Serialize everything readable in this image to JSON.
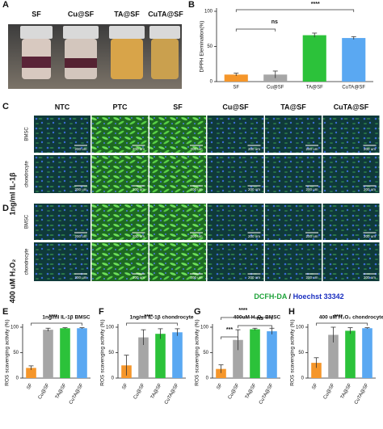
{
  "panel_labels": [
    "A",
    "B",
    "C",
    "D",
    "E",
    "F",
    "G",
    "H"
  ],
  "photo": {
    "labels": [
      "SF",
      "Cu@SF",
      "TA@SF",
      "CuTA@SF"
    ]
  },
  "microscopy": {
    "columns": [
      "NTC",
      "PTC",
      "SF",
      "Cu@SF",
      "TA@SF",
      "CuTA@SF"
    ],
    "cell_types": [
      "BMSC",
      "chondrocyte"
    ],
    "conditions": [
      "1ng/ml IL-1β",
      "400 uM H₂O₂"
    ],
    "scale_bar": "200 um",
    "legend": [
      "DCFH-DA",
      " / ",
      "Hoechst 33342"
    ]
  },
  "chart_data": [
    {
      "type": "bar",
      "y_label": "DPPH Elemination(%)",
      "categories": [
        "SF",
        "Cu@SF",
        "TA@SF",
        "CuTA@SF"
      ],
      "values": [
        10,
        10,
        66,
        62
      ],
      "errors": [
        2,
        5,
        3,
        2
      ],
      "colors": [
        "#f5962a",
        "#a6a6a6",
        "#2cc23a",
        "#5aa8f2"
      ],
      "ylim": [
        0,
        100
      ],
      "yticks": [
        0,
        50,
        100
      ],
      "annotations": [
        "****",
        "ns"
      ]
    },
    {
      "type": "bar",
      "title": "1ng/ml IL-1β BMSC",
      "y_label": "ROS scavenging activity (%)",
      "categories": [
        "SF",
        "Cu@SF",
        "TA@SF",
        "CuTA@SF"
      ],
      "values": [
        20,
        95,
        98,
        98
      ],
      "errors": [
        4,
        3,
        1,
        1
      ],
      "colors": [
        "#f5962a",
        "#a6a6a6",
        "#2cc23a",
        "#5aa8f2"
      ],
      "ylim": [
        0,
        100
      ],
      "yticks": [
        0,
        50,
        100
      ],
      "annotations": [
        "****"
      ]
    },
    {
      "type": "bar",
      "title": "1ng/ml IL-1β chondrocyte",
      "y_label": "ROS scavenging activity (%)",
      "categories": [
        "SF",
        "Cu@SF",
        "TA@SF",
        "CuTA@SF"
      ],
      "values": [
        25,
        80,
        87,
        90
      ],
      "errors": [
        20,
        15,
        10,
        7
      ],
      "colors": [
        "#f5962a",
        "#a6a6a6",
        "#2cc23a",
        "#5aa8f2"
      ],
      "ylim": [
        0,
        100
      ],
      "yticks": [
        0,
        50,
        100
      ],
      "annotations": [
        "****"
      ]
    },
    {
      "type": "bar",
      "title": "400uM H₂O₂ BMSC",
      "y_label": "ROS scavenging activity (%)",
      "categories": [
        "SF",
        "Cu@SF",
        "TA@SF",
        "CuTA@SF"
      ],
      "values": [
        18,
        75,
        96,
        92
      ],
      "errors": [
        8,
        20,
        2,
        6
      ],
      "colors": [
        "#f5962a",
        "#a6a6a6",
        "#2cc23a",
        "#5aa8f2"
      ],
      "ylim": [
        0,
        100
      ],
      "yticks": [
        0,
        50,
        100
      ],
      "annotations": [
        "****",
        "***",
        "ns"
      ]
    },
    {
      "type": "bar",
      "title": "400 uM H₂O₂ chondrocyte",
      "y_label": "ROS scavenging activity (%)",
      "categories": [
        "SF",
        "Cu@SF",
        "TA@SF",
        "CuTA@SF"
      ],
      "values": [
        30,
        85,
        93,
        98
      ],
      "errors": [
        10,
        15,
        6,
        1
      ],
      "colors": [
        "#f5962a",
        "#a6a6a6",
        "#2cc23a",
        "#5aa8f2"
      ],
      "ylim": [
        0,
        100
      ],
      "yticks": [
        0,
        50,
        100
      ],
      "annotations": [
        "****"
      ]
    }
  ]
}
